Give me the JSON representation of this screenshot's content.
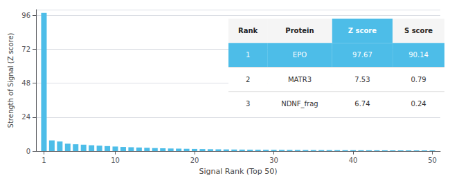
{
  "chart_data": {
    "type": "bar",
    "x": [
      1,
      2,
      3,
      4,
      5,
      6,
      7,
      8,
      9,
      10,
      11,
      12,
      13,
      14,
      15,
      16,
      17,
      18,
      19,
      20,
      21,
      22,
      23,
      24,
      25,
      26,
      27,
      28,
      29,
      30,
      31,
      32,
      33,
      34,
      35,
      36,
      37,
      38,
      39,
      40,
      41,
      42,
      43,
      44,
      45,
      46,
      47,
      48,
      49,
      50
    ],
    "values": [
      97.67,
      7.53,
      6.74,
      5.2,
      4.8,
      4.5,
      4.1,
      3.8,
      3.5,
      3.2,
      2.9,
      2.7,
      2.5,
      2.3,
      2.1,
      1.95,
      1.8,
      1.7,
      1.6,
      1.5,
      1.4,
      1.3,
      1.22,
      1.15,
      1.08,
      1.02,
      0.97,
      0.93,
      0.89,
      0.85,
      0.82,
      0.79,
      0.76,
      0.73,
      0.7,
      0.68,
      0.65,
      0.63,
      0.61,
      0.59,
      0.57,
      0.55,
      0.53,
      0.52,
      0.5,
      0.49,
      0.47,
      0.46,
      0.44,
      0.43
    ],
    "color": "#4dbde8",
    "xlabel": "Signal Rank (Top 50)",
    "ylabel": "Strength of Signal (Z score)",
    "xlim": [
      0,
      51
    ],
    "xticks": [
      1,
      10,
      20,
      30,
      40,
      50
    ],
    "ylim": [
      0,
      100
    ],
    "yticks": [
      0,
      24,
      48,
      72,
      96
    ],
    "grid": true,
    "table": {
      "columns": [
        "Rank",
        "Protein",
        "Z score",
        "S score"
      ],
      "rows": [
        [
          "1",
          "EPO",
          "97.67",
          "90.14"
        ],
        [
          "2",
          "MATR3",
          "7.53",
          "0.79"
        ],
        [
          "3",
          "NDNF_frag",
          "6.74",
          "0.24"
        ]
      ]
    }
  }
}
